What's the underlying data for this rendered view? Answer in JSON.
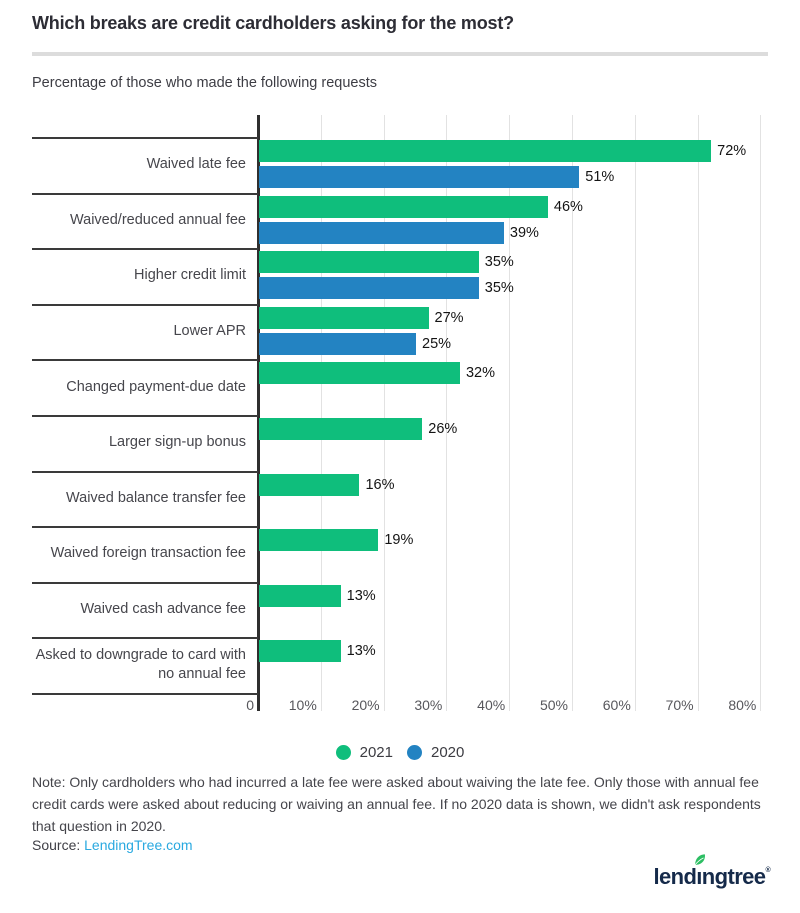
{
  "header": {
    "title": "Which breaks are credit cardholders asking for the most?",
    "subtitle": "Percentage of those who made the following requests"
  },
  "chart_data": {
    "type": "bar",
    "orientation": "horizontal",
    "title": "Which breaks are credit cardholders asking for the most?",
    "subtitle": "Percentage of those who made the following requests",
    "categories": [
      "Waived late fee",
      "Waived/reduced annual fee",
      "Higher credit limit",
      "Lower APR",
      "Changed payment-due date",
      "Larger sign-up bonus",
      "Waived balance transfer fee",
      "Waived foreign transaction fee",
      "Waived cash advance fee",
      "Asked to downgrade to card with no annual fee"
    ],
    "series": [
      {
        "name": "2021",
        "color": "#0fbe7c",
        "values": [
          72,
          46,
          35,
          27,
          32,
          26,
          16,
          19,
          13,
          13
        ]
      },
      {
        "name": "2020",
        "color": "#2383c2",
        "values": [
          51,
          39,
          35,
          25,
          null,
          null,
          null,
          null,
          null,
          null
        ]
      }
    ],
    "value_suffix": "%",
    "xlim": [
      0,
      80
    ],
    "axis_ticks": {
      "values": [
        0,
        10,
        20,
        30,
        40,
        50,
        60,
        70,
        80
      ],
      "labels": [
        "0",
        "10%",
        "20%",
        "30%",
        "40%",
        "50%",
        "60%",
        "70%",
        "80%"
      ]
    },
    "grid": true,
    "legend_position": "bottom"
  },
  "note": {
    "text": "Note: Only cardholders who had incurred a late fee were asked about waiving the late fee. Only those with annual fee credit cards were asked about reducing or waiving an annual fee. If no 2020 data is shown, we didn't ask respondents that question in 2020."
  },
  "source": {
    "label": "Source:",
    "link": "LendingTree.com"
  },
  "logo": {
    "pre": "lend",
    "i": "ı",
    "post": "ngtree",
    "mark": "®",
    "leaf_color": "#2cbe63"
  }
}
